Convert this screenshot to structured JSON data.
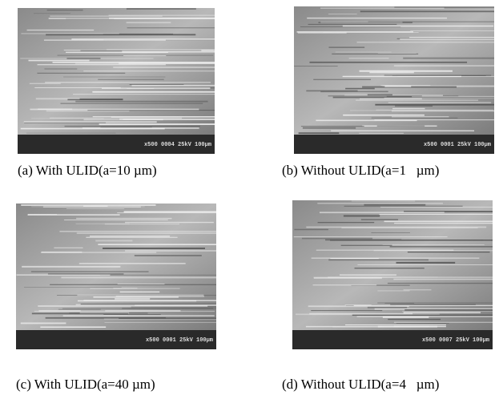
{
  "panels": [
    {
      "caption": "(a) With ULID(a=10 µm)",
      "info": "x500  0004  25kV 100µm"
    },
    {
      "caption": "(b) Without ULID(a=1   µm)",
      "info": "x500  0001  25kV 100µm"
    },
    {
      "caption": "(c) With ULID(a=40 µm)",
      "info": "x500  0001  25kV 100µm"
    },
    {
      "caption": "(d) Without ULID(a=4   µm)",
      "info": "x500  0007  25kV 100µm"
    }
  ]
}
